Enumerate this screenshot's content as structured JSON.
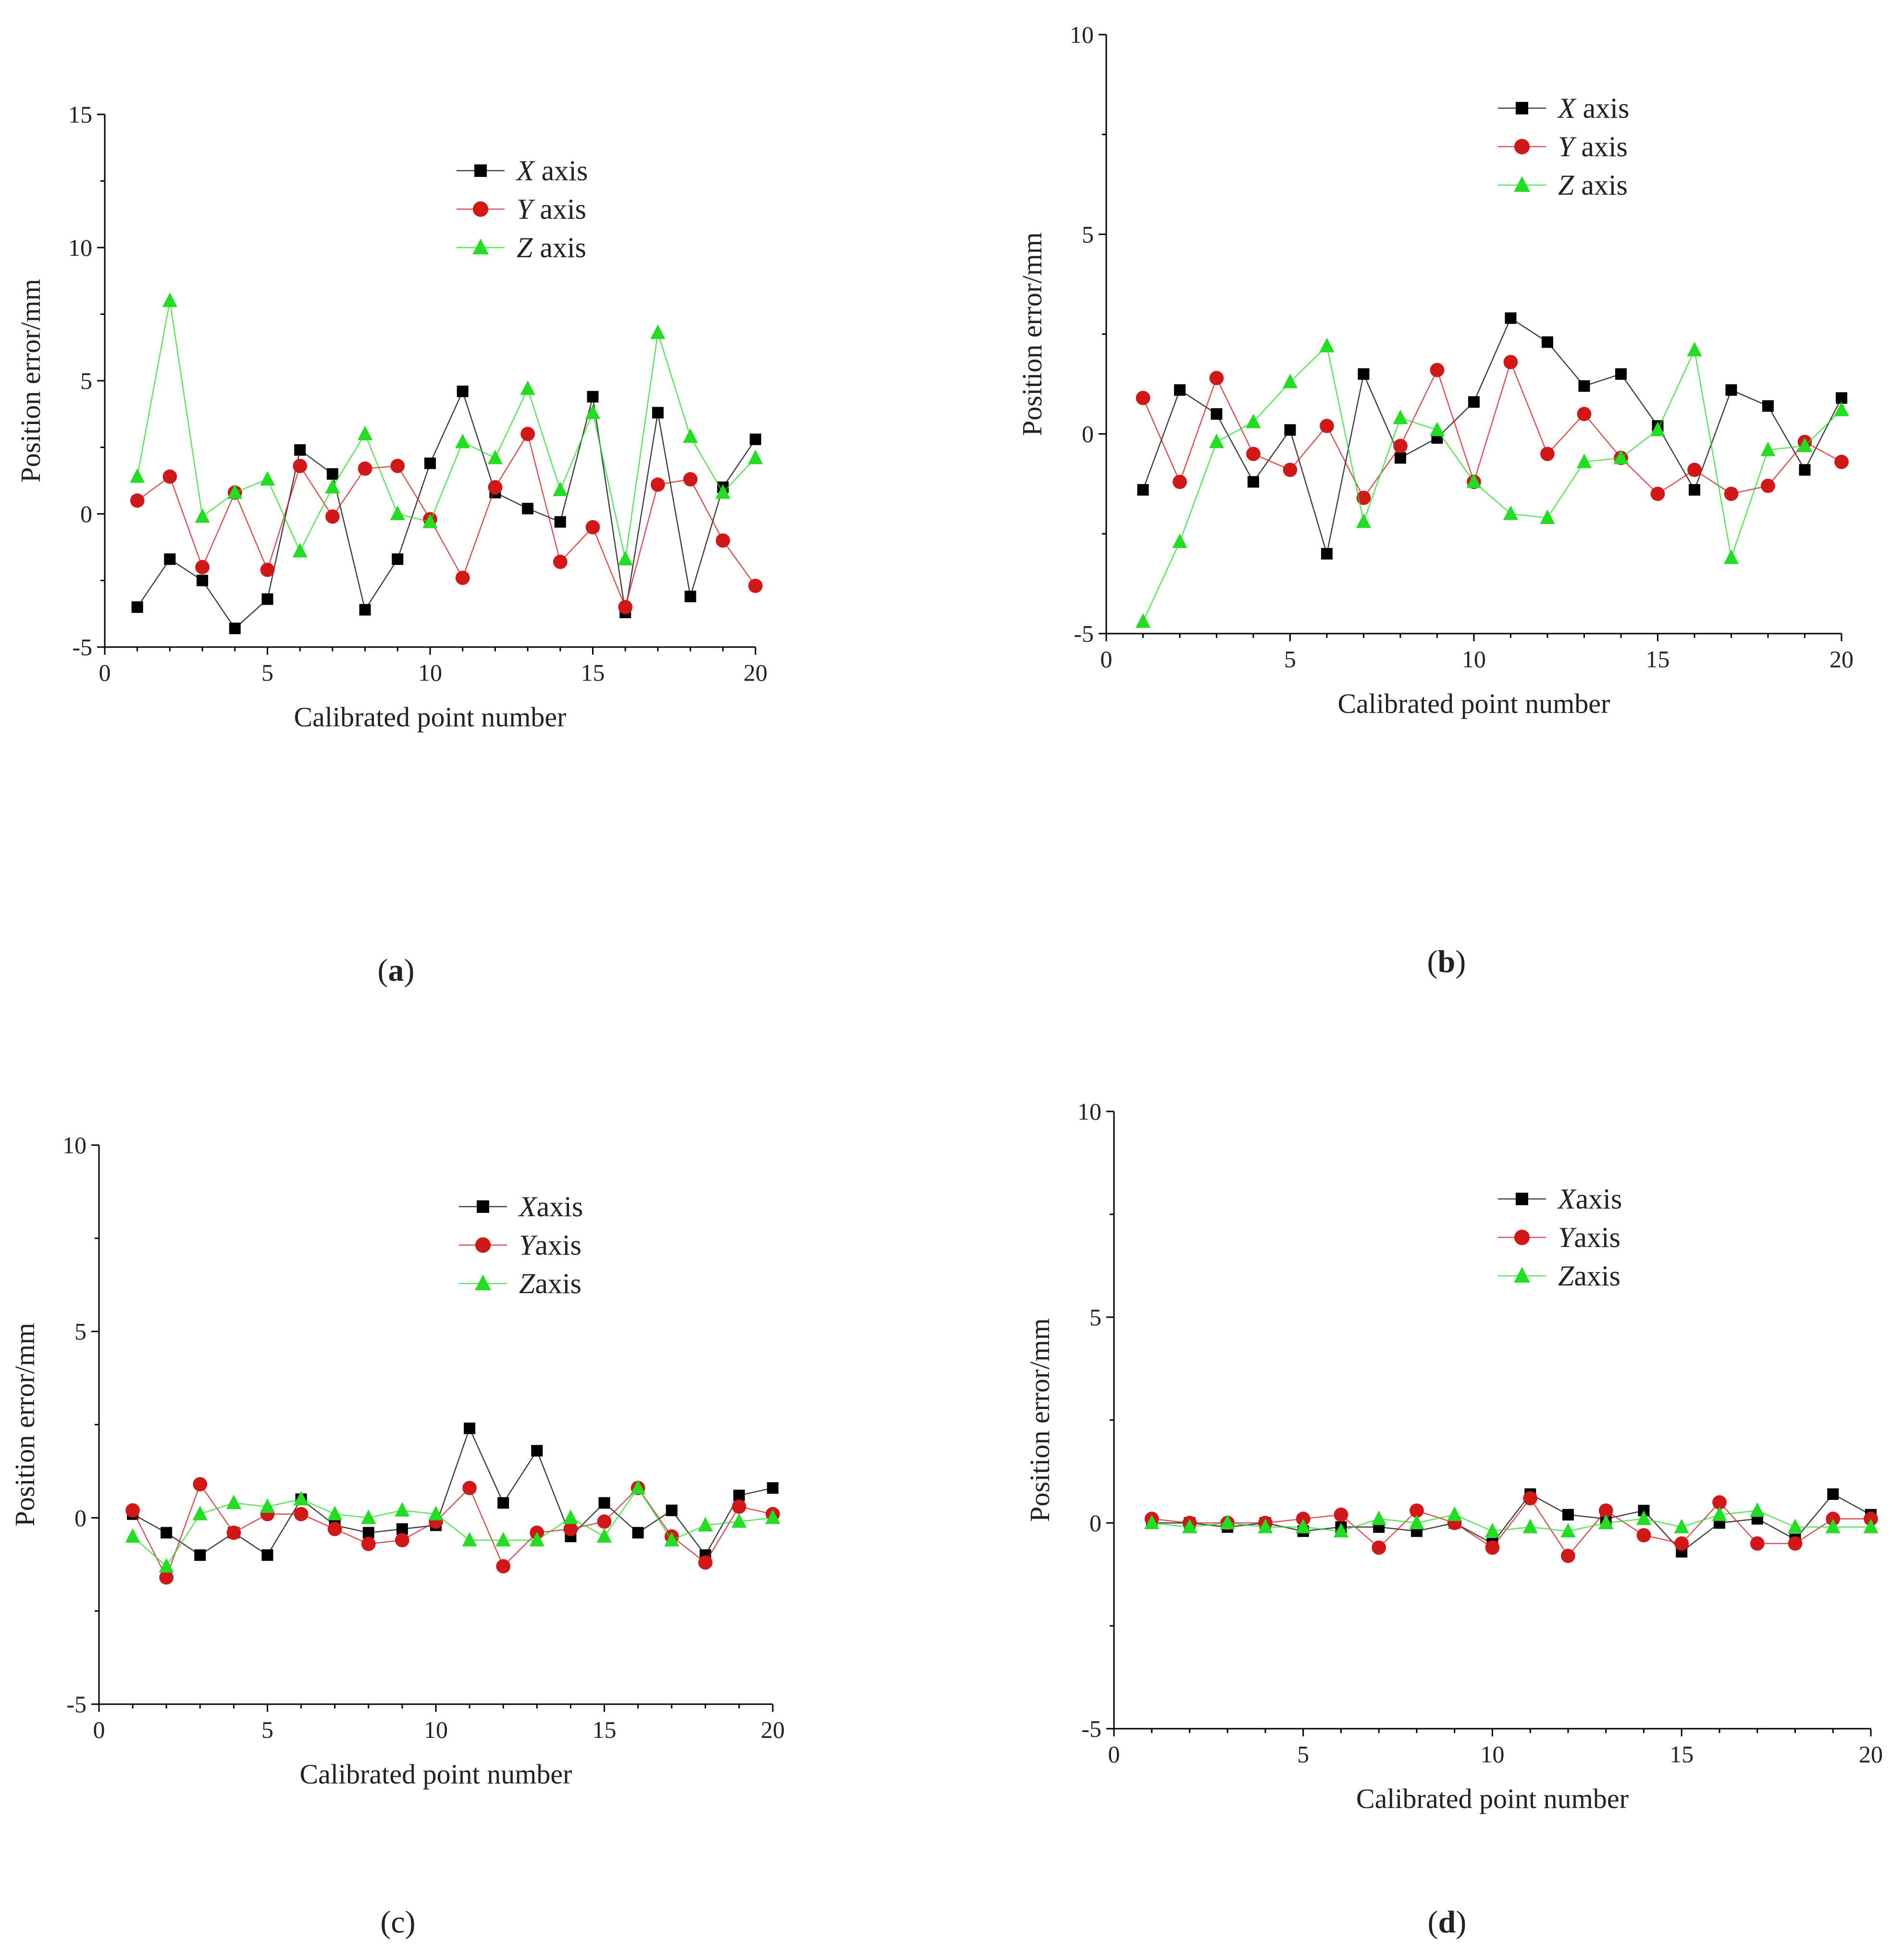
{
  "chart_data": [
    {
      "type": "line",
      "panel_label": "a",
      "panel_label_bold": true,
      "xlabel": "Calibrated point number",
      "ylabel": "Position error/mm",
      "xlim": [
        0,
        20
      ],
      "ylim": [
        -5,
        15
      ],
      "xticks": [
        0,
        5,
        10,
        15,
        20
      ],
      "yticks": [
        -5,
        0,
        5,
        10,
        15
      ],
      "legend_position": "top-right",
      "x": [
        1,
        2,
        3,
        4,
        5,
        6,
        7,
        8,
        9,
        10,
        11,
        12,
        13,
        14,
        15,
        16,
        17,
        18,
        19,
        20
      ],
      "series": [
        {
          "name": "X",
          "suffix": " axis",
          "color": "#000000",
          "marker": "square",
          "values": [
            -3.5,
            -1.7,
            -2.5,
            -4.3,
            -3.2,
            2.4,
            1.5,
            -3.6,
            -1.7,
            1.9,
            4.6,
            0.8,
            0.2,
            -0.3,
            4.4,
            -3.7,
            3.8,
            -3.1,
            1.0,
            2.8
          ]
        },
        {
          "name": "Y",
          "suffix": " axis",
          "color": "#d01818",
          "marker": "circle",
          "values": [
            0.5,
            1.4,
            -2.0,
            0.8,
            -2.1,
            1.8,
            -0.1,
            1.7,
            1.8,
            -0.2,
            -2.4,
            1.0,
            3.0,
            -1.8,
            -0.5,
            -3.5,
            1.1,
            1.3,
            -1.0,
            -2.7
          ]
        },
        {
          "name": "Z",
          "suffix": " axis",
          "color": "#22dd22",
          "marker": "triangle",
          "values": [
            1.4,
            8.0,
            -0.1,
            0.8,
            1.3,
            -1.4,
            1.0,
            3.0,
            0.0,
            -0.3,
            2.7,
            2.1,
            4.7,
            0.9,
            3.8,
            -1.7,
            6.8,
            2.9,
            0.8,
            2.1
          ]
        }
      ]
    },
    {
      "type": "line",
      "panel_label": "b",
      "panel_label_bold": true,
      "xlabel": "Calibrated point number",
      "ylabel": "Position error/mm",
      "xlim": [
        0,
        20
      ],
      "ylim": [
        -5,
        10
      ],
      "xticks": [
        0,
        5,
        10,
        15,
        20
      ],
      "yticks": [
        -5,
        0,
        5,
        10
      ],
      "legend_position": "top-right",
      "x": [
        1,
        2,
        3,
        4,
        5,
        6,
        7,
        8,
        9,
        10,
        11,
        12,
        13,
        14,
        15,
        16,
        17,
        18,
        19,
        20
      ],
      "series": [
        {
          "name": "X",
          "suffix": " axis",
          "color": "#000000",
          "marker": "square",
          "values": [
            -1.4,
            1.1,
            0.5,
            -1.2,
            0.1,
            -3.0,
            1.5,
            -0.6,
            -0.1,
            0.8,
            2.9,
            2.3,
            1.2,
            1.5,
            0.2,
            -1.4,
            1.1,
            0.7,
            -0.9,
            0.9
          ]
        },
        {
          "name": "Y",
          "suffix": " axis",
          "color": "#d01818",
          "marker": "circle",
          "values": [
            0.9,
            -1.2,
            1.4,
            -0.5,
            -0.9,
            0.2,
            -1.6,
            -0.3,
            1.6,
            -1.2,
            1.8,
            -0.5,
            0.5,
            -0.6,
            -1.5,
            -0.9,
            -1.5,
            -1.3,
            -0.2,
            -0.7
          ]
        },
        {
          "name": "Z",
          "suffix": " axis",
          "color": "#22dd22",
          "marker": "triangle",
          "values": [
            -4.7,
            -2.7,
            -0.2,
            0.3,
            1.3,
            2.2,
            -2.2,
            0.4,
            0.1,
            -1.2,
            -2.0,
            -2.1,
            -0.7,
            -0.6,
            0.1,
            2.1,
            -3.1,
            -0.4,
            -0.3,
            0.6
          ]
        }
      ]
    },
    {
      "type": "line",
      "panel_label": "c",
      "panel_label_bold": false,
      "xlabel": "Calibrated point number",
      "ylabel": "Position error/mm",
      "xlim": [
        0,
        20
      ],
      "ylim": [
        -5,
        10
      ],
      "xticks": [
        0,
        5,
        10,
        15,
        20
      ],
      "yticks": [
        -5,
        0,
        5,
        10
      ],
      "legend_position": "top-right",
      "x": [
        1,
        2,
        3,
        4,
        5,
        6,
        7,
        8,
        9,
        10,
        11,
        12,
        13,
        14,
        15,
        16,
        17,
        18,
        19,
        20
      ],
      "series": [
        {
          "name": "X",
          "suffix": "axis",
          "color": "#000000",
          "marker": "square",
          "values": [
            0.1,
            -0.4,
            -1.0,
            -0.4,
            -1.0,
            0.5,
            -0.2,
            -0.4,
            -0.3,
            -0.2,
            2.4,
            0.4,
            1.8,
            -0.5,
            0.4,
            -0.4,
            0.2,
            -1.0,
            0.6,
            0.8
          ]
        },
        {
          "name": "Y",
          "suffix": "axis",
          "color": "#d01818",
          "marker": "circle",
          "values": [
            0.2,
            -1.6,
            0.9,
            -0.4,
            0.1,
            0.1,
            -0.3,
            -0.7,
            -0.6,
            -0.1,
            0.8,
            -1.3,
            -0.4,
            -0.3,
            -0.1,
            0.8,
            -0.5,
            -1.2,
            0.3,
            0.1
          ]
        },
        {
          "name": "Z",
          "suffix": "axis",
          "color": "#22dd22",
          "marker": "triangle",
          "values": [
            -0.5,
            -1.3,
            0.1,
            0.4,
            0.3,
            0.5,
            0.1,
            0.0,
            0.2,
            0.1,
            -0.6,
            -0.6,
            -0.6,
            0.0,
            -0.5,
            0.8,
            -0.6,
            -0.2,
            -0.1,
            0.0
          ]
        }
      ]
    },
    {
      "type": "line",
      "panel_label": "d",
      "panel_label_bold": true,
      "xlabel": "Calibrated point number",
      "ylabel": "Position error/mm",
      "xlim": [
        0,
        20
      ],
      "ylim": [
        -5,
        10
      ],
      "xticks": [
        0,
        5,
        10,
        15,
        20
      ],
      "yticks": [
        -5,
        0,
        5,
        10
      ],
      "legend_position": "top-right",
      "x": [
        1,
        2,
        3,
        4,
        5,
        6,
        7,
        8,
        9,
        10,
        11,
        12,
        13,
        14,
        15,
        16,
        17,
        18,
        19,
        20
      ],
      "series": [
        {
          "name": "X",
          "suffix": "axis",
          "color": "#000000",
          "marker": "square",
          "values": [
            0.0,
            0.0,
            -0.1,
            0.0,
            -0.2,
            -0.1,
            -0.1,
            -0.2,
            0.0,
            -0.5,
            0.7,
            0.2,
            0.1,
            0.3,
            -0.7,
            0.0,
            0.1,
            -0.4,
            0.7,
            0.2
          ]
        },
        {
          "name": "Y",
          "suffix": "axis",
          "color": "#d01818",
          "marker": "circle",
          "values": [
            0.1,
            0.0,
            0.0,
            0.0,
            0.1,
            0.2,
            -0.6,
            0.3,
            0.0,
            -0.6,
            0.6,
            -0.8,
            0.3,
            -0.3,
            -0.5,
            0.5,
            -0.5,
            -0.5,
            0.1,
            0.1
          ]
        },
        {
          "name": "Z",
          "suffix": "axis",
          "color": "#22dd22",
          "marker": "triangle",
          "values": [
            0.0,
            -0.1,
            0.0,
            -0.1,
            -0.1,
            -0.2,
            0.1,
            0.0,
            0.2,
            -0.2,
            -0.1,
            -0.2,
            0.0,
            0.1,
            -0.1,
            0.2,
            0.3,
            -0.1,
            -0.1,
            -0.1
          ]
        }
      ]
    }
  ]
}
